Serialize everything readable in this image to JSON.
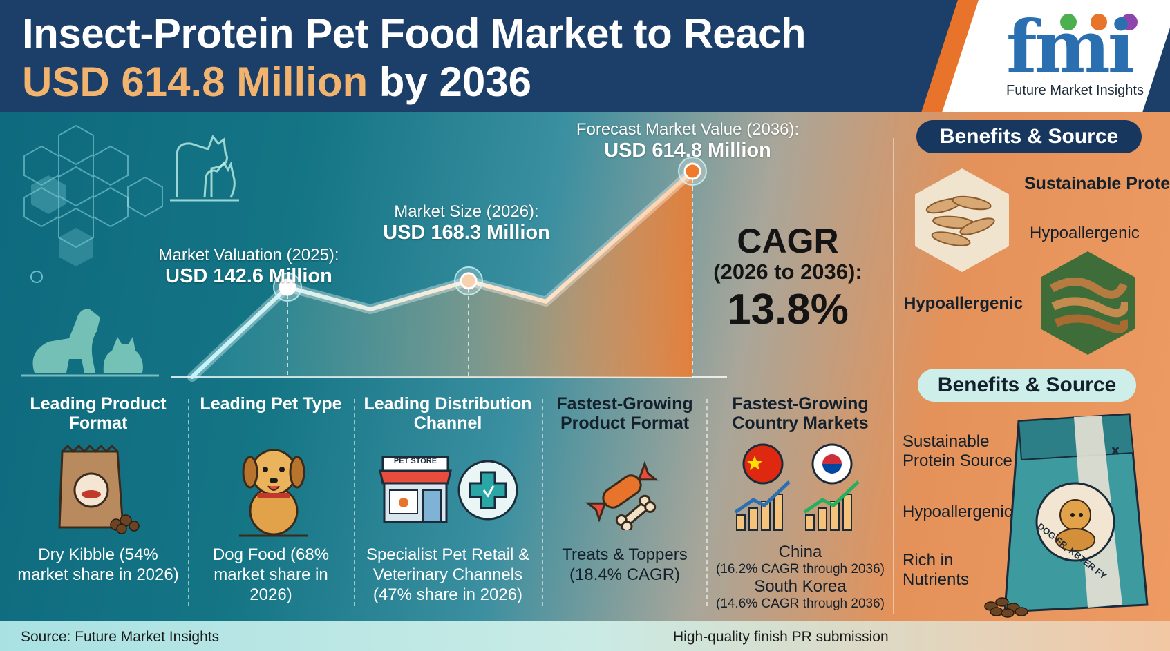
{
  "header": {
    "title_line1": "Insect-Protein Pet Food Market to Reach",
    "title_line2_highlight": "USD 614.8 Million",
    "title_line2_rest": " by 2036",
    "logo_mark": "fmi",
    "logo_name": "Future Market Insights"
  },
  "chart_data": {
    "type": "line",
    "x": [
      "2025",
      "2026",
      "2036"
    ],
    "values": [
      142.6,
      168.3,
      614.8
    ],
    "unit": "USD Million",
    "labels": [
      {
        "title": "Market Valuation (2025):",
        "value": "USD 142.6 Million"
      },
      {
        "title": "Market Size (2026):",
        "value": "USD 168.3 Million"
      },
      {
        "title": "Forecast Market Value (2036):",
        "value": "USD 614.8 Million"
      }
    ]
  },
  "cagr": {
    "label": "CAGR",
    "period": "(2026 to 2036):",
    "value": "13.8%"
  },
  "segments": [
    {
      "heading": "Leading Product Format",
      "icon": "kibble-bag-icon",
      "detail": "Dry Kibble (54% market share in 2026)"
    },
    {
      "heading": "Leading Pet Type",
      "icon": "dog-icon",
      "detail": "Dog Food (68% market share in 2026)"
    },
    {
      "heading": "Leading Distribution Channel",
      "icon": "pet-store-icon",
      "store_sign": "PET STORE",
      "detail": "Specialist Pet Retail & Veterinary Channels (47% share in 2026)"
    },
    {
      "heading": "Fastest-Growing Product Format",
      "icon": "treat-icon",
      "detail": "Treats & Toppers (18.4% CAGR)"
    },
    {
      "heading": "Fastest-Growing Country Markets",
      "icon": "country-growth-icon",
      "country1": "China",
      "country1_cagr": "(16.2% CAGR through 2036)",
      "country2": "South Korea",
      "country2_cagr": "(14.6% CAGR through 2036)"
    }
  ],
  "benefits": {
    "pill_top": "Benefits & Source",
    "sustainable": "Sustainable Protein Source",
    "hypo_right": "Hypoallergenic",
    "hypo_left": "Hypoallergenic",
    "pill_bottom": "Benefits & Source",
    "list": [
      "Sustainable Protein Source",
      "Hypoallergenic",
      "Rich in Nutrients"
    ],
    "bag_text": "DOG FR, KBTER FY"
  },
  "footer": {
    "source": "Source: Future Market Insights",
    "note": "High-quality finish PR submission"
  },
  "colors": {
    "header_bg": "#1b3f68",
    "highlight": "#f2b36f",
    "accent_orange": "#e8742c",
    "accent_blue": "#3aa0c8"
  }
}
